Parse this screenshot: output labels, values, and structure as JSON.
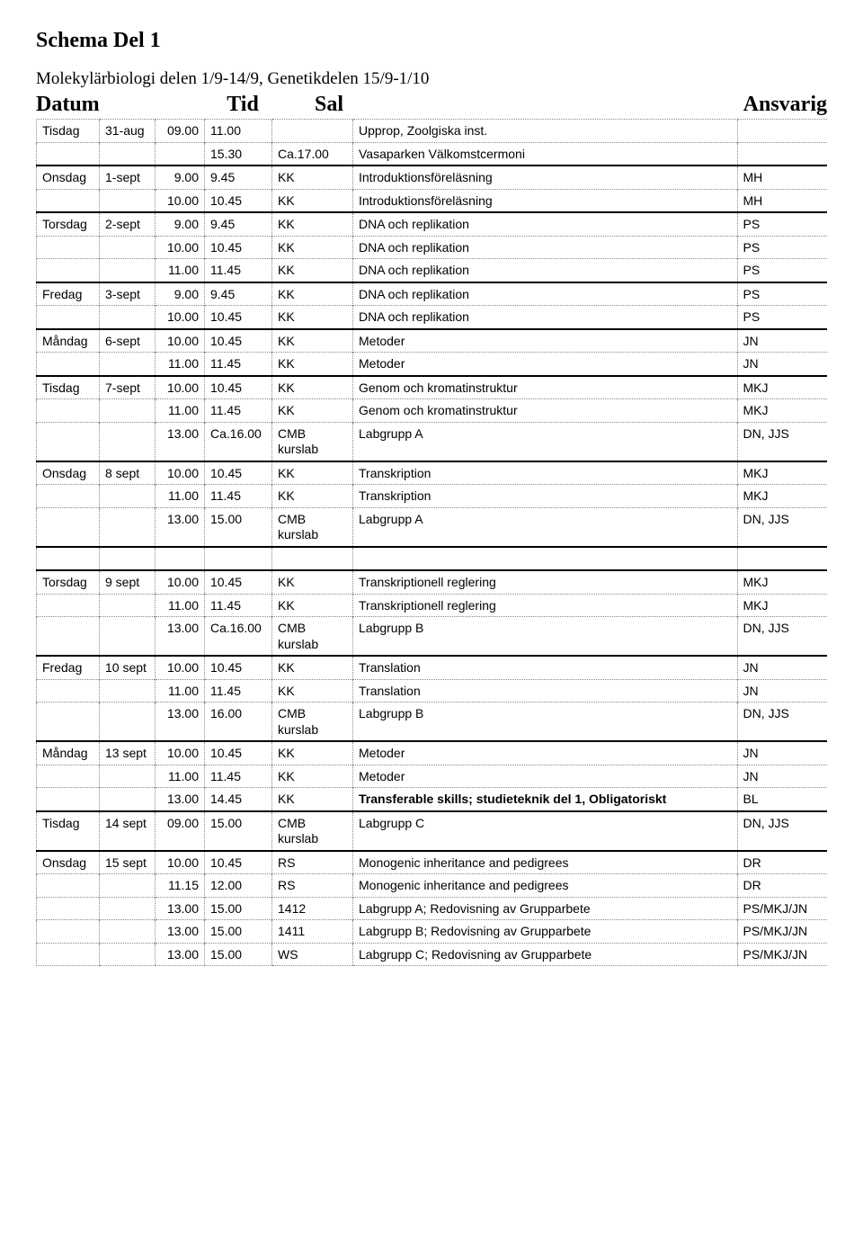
{
  "title": "Schema Del 1",
  "subtitle": "Molekylärbiologi delen 1/9-14/9, Genetikdelen 15/9-1/10",
  "headers": {
    "datum": "Datum",
    "tid": "Tid",
    "sal": "Sal",
    "ansvarig": "Ansvarig"
  },
  "rows": [
    {
      "thick": false,
      "day": "Tisdag",
      "date": "31-aug",
      "t1": "09.00",
      "t2": "11.00",
      "sal": "",
      "desc": "Upprop, Zoolgiska inst.",
      "ansv": ""
    },
    {
      "thick": false,
      "day": "",
      "date": "",
      "t1": "",
      "t2": "15.30",
      "sal": "Ca.17.00",
      "desc": "Vasaparken Välkomstcermoni",
      "ansv": "",
      "salInDesc": false,
      "special": "merge-sal"
    },
    {
      "thick": true,
      "day": "Onsdag",
      "date": "1-sept",
      "t1": "9.00",
      "t2": "9.45",
      "sal": "KK",
      "desc": "Introduktionsföreläsning",
      "ansv": "MH"
    },
    {
      "thick": false,
      "day": "",
      "date": "",
      "t1": "10.00",
      "t2": "10.45",
      "sal": "KK",
      "desc": "Introduktionsföreläsning",
      "ansv": "MH"
    },
    {
      "thick": true,
      "day": "Torsdag",
      "date": "2-sept",
      "t1": "9.00",
      "t2": "9.45",
      "sal": "KK",
      "desc": "DNA och replikation",
      "ansv": "PS"
    },
    {
      "thick": false,
      "day": "",
      "date": "",
      "t1": "10.00",
      "t2": "10.45",
      "sal": "KK",
      "desc": "DNA och replikation",
      "ansv": "PS"
    },
    {
      "thick": false,
      "day": "",
      "date": "",
      "t1": "11.00",
      "t2": "11.45",
      "sal": "KK",
      "desc": "DNA och replikation",
      "ansv": "PS"
    },
    {
      "thick": true,
      "day": "Fredag",
      "date": "3-sept",
      "t1": "9.00",
      "t2": "9.45",
      "sal": "KK",
      "desc": "DNA och replikation",
      "ansv": "PS"
    },
    {
      "thick": false,
      "day": "",
      "date": "",
      "t1": "10.00",
      "t2": "10.45",
      "sal": "KK",
      "desc": "DNA och replikation",
      "ansv": "PS"
    },
    {
      "thick": true,
      "day": "Måndag",
      "date": "6-sept",
      "t1": "10.00",
      "t2": "10.45",
      "sal": "KK",
      "desc": "Metoder",
      "ansv": "JN"
    },
    {
      "thick": false,
      "day": "",
      "date": "",
      "t1": "11.00",
      "t2": "11.45",
      "sal": "KK",
      "desc": "Metoder",
      "ansv": "JN"
    },
    {
      "thick": true,
      "day": "Tisdag",
      "date": "7-sept",
      "t1": "10.00",
      "t2": "10.45",
      "sal": "KK",
      "desc": "Genom och kromatinstruktur",
      "ansv": "MKJ"
    },
    {
      "thick": false,
      "day": "",
      "date": "",
      "t1": "11.00",
      "t2": "11.45",
      "sal": "KK",
      "desc": "Genom och kromatinstruktur",
      "ansv": "MKJ"
    },
    {
      "thick": false,
      "day": "",
      "date": "",
      "t1": "13.00",
      "t2": "Ca.16.00",
      "sal": "CMB kurslab",
      "desc": "Labgrupp A",
      "ansv": "DN, JJS"
    },
    {
      "thick": true,
      "day": "Onsdag",
      "date": "8 sept",
      "t1": "10.00",
      "t2": "10.45",
      "sal": "KK",
      "desc": "Transkription",
      "ansv": "MKJ"
    },
    {
      "thick": false,
      "day": "",
      "date": "",
      "t1": "11.00",
      "t2": "11.45",
      "sal": "KK",
      "desc": "Transkription",
      "ansv": "MKJ"
    },
    {
      "thick": false,
      "day": "",
      "date": "",
      "t1": "13.00",
      "t2": "15.00",
      "sal": "CMB kurslab",
      "desc": "Labgrupp A",
      "ansv": "DN, JJS"
    },
    {
      "thick": true,
      "spacer": true
    },
    {
      "thick": true,
      "day": "Torsdag",
      "date": "9 sept",
      "t1": "10.00",
      "t2": "10.45",
      "sal": "KK",
      "desc": "Transkriptionell reglering",
      "ansv": "MKJ"
    },
    {
      "thick": false,
      "day": "",
      "date": "",
      "t1": "11.00",
      "t2": "11.45",
      "sal": "KK",
      "desc": "Transkriptionell reglering",
      "ansv": "MKJ"
    },
    {
      "thick": false,
      "day": "",
      "date": "",
      "t1": "13.00",
      "t2": "Ca.16.00",
      "sal": "CMB kurslab",
      "desc": "Labgrupp B",
      "ansv": "DN, JJS"
    },
    {
      "thick": true,
      "day": "Fredag",
      "date": "10 sept",
      "t1": "10.00",
      "t2": "10.45",
      "sal": "KK",
      "desc": "Translation",
      "ansv": "JN"
    },
    {
      "thick": false,
      "day": "",
      "date": "",
      "t1": "11.00",
      "t2": "11.45",
      "sal": "KK",
      "desc": "Translation",
      "ansv": "JN"
    },
    {
      "thick": false,
      "day": "",
      "date": "",
      "t1": "13.00",
      "t2": "16.00",
      "sal": "CMB kurslab",
      "desc": "Labgrupp B",
      "ansv": "DN, JJS"
    },
    {
      "thick": true,
      "day": "Måndag",
      "date": "13 sept",
      "t1": "10.00",
      "t2": "10.45",
      "sal": "KK",
      "desc": "Metoder",
      "ansv": "JN"
    },
    {
      "thick": false,
      "day": "",
      "date": "",
      "t1": "11.00",
      "t2": "11.45",
      "sal": "KK",
      "desc": "Metoder",
      "ansv": "JN"
    },
    {
      "thick": false,
      "day": "",
      "date": "",
      "t1": "13.00",
      "t2": "14.45",
      "sal": "KK",
      "desc": "Transferable skills; studieteknik del 1, Obligatoriskt",
      "ansv": "BL",
      "bold": true
    },
    {
      "thick": true,
      "day": "Tisdag",
      "date": "14 sept",
      "t1": "09.00",
      "t2": "15.00",
      "sal": "CMB kurslab",
      "desc": "Labgrupp C",
      "ansv": "DN, JJS"
    },
    {
      "thick": true,
      "day": "Onsdag",
      "date": "15 sept",
      "t1": "10.00",
      "t2": "10.45",
      "sal": "RS",
      "desc": "Monogenic inheritance and pedigrees",
      "ansv": "DR"
    },
    {
      "thick": false,
      "day": "",
      "date": "",
      "t1": "11.15",
      "t2": "12.00",
      "sal": "RS",
      "desc": "Monogenic inheritance and pedigrees",
      "ansv": "DR"
    },
    {
      "thick": false,
      "day": "",
      "date": "",
      "t1": "13.00",
      "t2": "15.00",
      "sal": "1412",
      "desc": "Labgrupp A; Redovisning av Grupparbete",
      "ansv": "PS/MKJ/JN"
    },
    {
      "thick": false,
      "day": "",
      "date": "",
      "t1": "13.00",
      "t2": "15.00",
      "sal": "1411",
      "desc": "Labgrupp B; Redovisning av Grupparbete",
      "ansv": "PS/MKJ/JN"
    },
    {
      "thick": false,
      "day": "",
      "date": "",
      "t1": "13.00",
      "t2": "15.00",
      "sal": "WS",
      "desc": "Labgrupp C; Redovisning av Grupparbete",
      "ansv": "PS/MKJ/JN"
    }
  ]
}
